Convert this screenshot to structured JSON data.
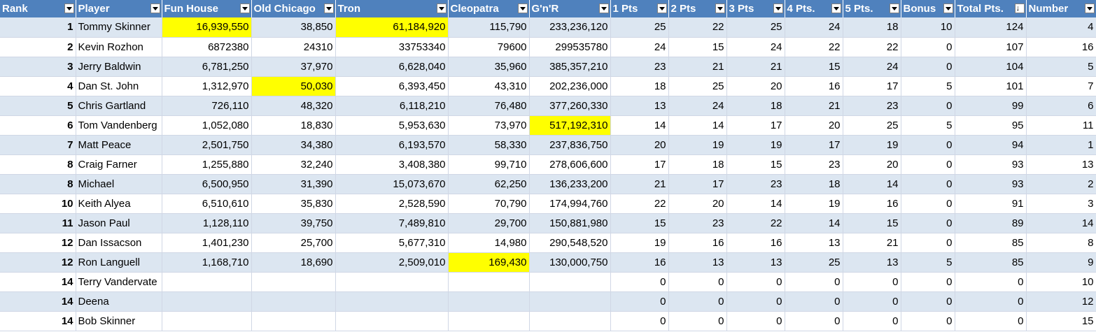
{
  "columns": [
    "Rank",
    "Player",
    "Fun House",
    "Old Chicago",
    "Tron",
    "Cleopatra",
    "G'n'R",
    "1 Pts",
    "2 Pts",
    "3 Pts",
    "4 Pts.",
    "5 Pts.",
    "Bonus",
    "Total Pts.",
    "Number"
  ],
  "highlight_color": "#ffff00",
  "header_color": "#4f81bd",
  "band_color": "#dce6f1",
  "sorted_column": "Total Pts.",
  "rows": [
    {
      "rank": "1",
      "player": "Tommy Skinner",
      "fun_house": "16,939,550",
      "old_chicago": "38,850",
      "tron": "61,184,920",
      "cleopatra": "115,790",
      "gnr": "233,236,120",
      "p1": "25",
      "p2": "22",
      "p3": "25",
      "p4": "24",
      "p5": "18",
      "bonus": "10",
      "total": "124",
      "number": "4",
      "highlight": [
        "fun_house",
        "tron"
      ]
    },
    {
      "rank": "2",
      "player": "Kevin Rozhon",
      "fun_house": "6872380",
      "old_chicago": "24310",
      "tron": "33753340",
      "cleopatra": "79600",
      "gnr": "299535780",
      "p1": "24",
      "p2": "15",
      "p3": "24",
      "p4": "22",
      "p5": "22",
      "bonus": "0",
      "total": "107",
      "number": "16",
      "highlight": []
    },
    {
      "rank": "3",
      "player": "Jerry Baldwin",
      "fun_house": "6,781,250",
      "old_chicago": "37,970",
      "tron": "6,628,040",
      "cleopatra": "35,960",
      "gnr": "385,357,210",
      "p1": "23",
      "p2": "21",
      "p3": "21",
      "p4": "15",
      "p5": "24",
      "bonus": "0",
      "total": "104",
      "number": "5",
      "highlight": []
    },
    {
      "rank": "4",
      "player": "Dan St. John",
      "fun_house": "1,312,970",
      "old_chicago": "50,030",
      "tron": "6,393,450",
      "cleopatra": "43,310",
      "gnr": "202,236,000",
      "p1": "18",
      "p2": "25",
      "p3": "20",
      "p4": "16",
      "p5": "17",
      "bonus": "5",
      "total": "101",
      "number": "7",
      "highlight": [
        "old_chicago"
      ]
    },
    {
      "rank": "5",
      "player": "Chris Gartland",
      "fun_house": "726,110",
      "old_chicago": "48,320",
      "tron": "6,118,210",
      "cleopatra": "76,480",
      "gnr": "377,260,330",
      "p1": "13",
      "p2": "24",
      "p3": "18",
      "p4": "21",
      "p5": "23",
      "bonus": "0",
      "total": "99",
      "number": "6",
      "highlight": []
    },
    {
      "rank": "6",
      "player": "Tom Vandenberg",
      "fun_house": "1,052,080",
      "old_chicago": "18,830",
      "tron": "5,953,630",
      "cleopatra": "73,970",
      "gnr": "517,192,310",
      "p1": "14",
      "p2": "14",
      "p3": "17",
      "p4": "20",
      "p5": "25",
      "bonus": "5",
      "total": "95",
      "number": "11",
      "highlight": [
        "gnr"
      ]
    },
    {
      "rank": "7",
      "player": "Matt Peace",
      "fun_house": "2,501,750",
      "old_chicago": "34,380",
      "tron": "6,193,570",
      "cleopatra": "58,330",
      "gnr": "237,836,750",
      "p1": "20",
      "p2": "19",
      "p3": "19",
      "p4": "17",
      "p5": "19",
      "bonus": "0",
      "total": "94",
      "number": "1",
      "highlight": []
    },
    {
      "rank": "8",
      "player": "Craig Farner",
      "fun_house": "1,255,880",
      "old_chicago": "32,240",
      "tron": "3,408,380",
      "cleopatra": "99,710",
      "gnr": "278,606,600",
      "p1": "17",
      "p2": "18",
      "p3": "15",
      "p4": "23",
      "p5": "20",
      "bonus": "0",
      "total": "93",
      "number": "13",
      "highlight": []
    },
    {
      "rank": "8",
      "player": "Michael",
      "fun_house": "6,500,950",
      "old_chicago": "31,390",
      "tron": "15,073,670",
      "cleopatra": "62,250",
      "gnr": "136,233,200",
      "p1": "21",
      "p2": "17",
      "p3": "23",
      "p4": "18",
      "p5": "14",
      "bonus": "0",
      "total": "93",
      "number": "2",
      "highlight": []
    },
    {
      "rank": "10",
      "player": "Keith Alyea",
      "fun_house": "6,510,610",
      "old_chicago": "35,830",
      "tron": "2,528,590",
      "cleopatra": "70,790",
      "gnr": "174,994,760",
      "p1": "22",
      "p2": "20",
      "p3": "14",
      "p4": "19",
      "p5": "16",
      "bonus": "0",
      "total": "91",
      "number": "3",
      "highlight": []
    },
    {
      "rank": "11",
      "player": "Jason Paul",
      "fun_house": "1,128,110",
      "old_chicago": "39,750",
      "tron": "7,489,810",
      "cleopatra": "29,700",
      "gnr": "150,881,980",
      "p1": "15",
      "p2": "23",
      "p3": "22",
      "p4": "14",
      "p5": "15",
      "bonus": "0",
      "total": "89",
      "number": "14",
      "highlight": []
    },
    {
      "rank": "12",
      "player": "Dan Issacson",
      "fun_house": "1,401,230",
      "old_chicago": "25,700",
      "tron": "5,677,310",
      "cleopatra": "14,980",
      "gnr": "290,548,520",
      "p1": "19",
      "p2": "16",
      "p3": "16",
      "p4": "13",
      "p5": "21",
      "bonus": "0",
      "total": "85",
      "number": "8",
      "highlight": []
    },
    {
      "rank": "12",
      "player": "Ron Languell",
      "fun_house": "1,168,710",
      "old_chicago": "18,690",
      "tron": "2,509,010",
      "cleopatra": "169,430",
      "gnr": "130,000,750",
      "p1": "16",
      "p2": "13",
      "p3": "13",
      "p4": "25",
      "p5": "13",
      "bonus": "5",
      "total": "85",
      "number": "9",
      "highlight": [
        "cleopatra"
      ]
    },
    {
      "rank": "14",
      "player": "Terry Vandervate",
      "fun_house": "",
      "old_chicago": "",
      "tron": "",
      "cleopatra": "",
      "gnr": "",
      "p1": "0",
      "p2": "0",
      "p3": "0",
      "p4": "0",
      "p5": "0",
      "bonus": "0",
      "total": "0",
      "number": "10",
      "highlight": []
    },
    {
      "rank": "14",
      "player": "Deena",
      "fun_house": "",
      "old_chicago": "",
      "tron": "",
      "cleopatra": "",
      "gnr": "",
      "p1": "0",
      "p2": "0",
      "p3": "0",
      "p4": "0",
      "p5": "0",
      "bonus": "0",
      "total": "0",
      "number": "12",
      "highlight": []
    },
    {
      "rank": "14",
      "player": "Bob Skinner",
      "fun_house": "",
      "old_chicago": "",
      "tron": "",
      "cleopatra": "",
      "gnr": "",
      "p1": "0",
      "p2": "0",
      "p3": "0",
      "p4": "0",
      "p5": "0",
      "bonus": "0",
      "total": "0",
      "number": "15",
      "highlight": []
    }
  ]
}
